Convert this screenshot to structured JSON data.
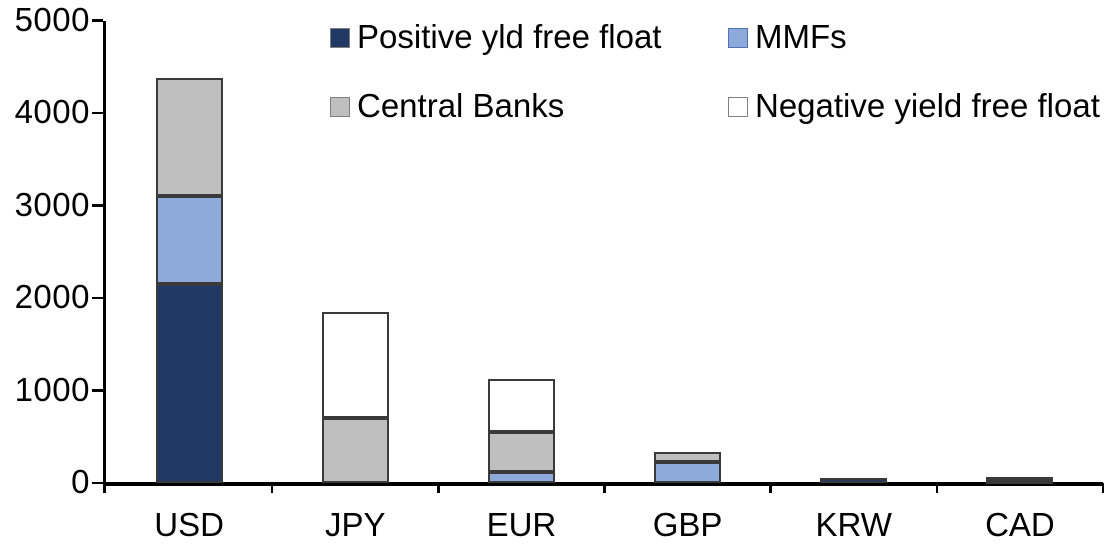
{
  "chart_data": {
    "type": "bar",
    "stacked": true,
    "title": "",
    "xlabel": "",
    "ylabel": "",
    "categories": [
      "USD",
      "JPY",
      "EUR",
      "GBP",
      "KRW",
      "CAD"
    ],
    "series": [
      {
        "name": "Positive yld free float",
        "color": "#1F3864",
        "values": [
          2150,
          0,
          0,
          0,
          50,
          30
        ]
      },
      {
        "name": "MMFs",
        "color": "#8EAADB",
        "values": [
          950,
          0,
          120,
          230,
          0,
          0
        ]
      },
      {
        "name": "Central Banks",
        "color": "#BFBFBF",
        "values": [
          1275,
          700,
          430,
          110,
          0,
          35
        ]
      },
      {
        "name": "Negative yield free float",
        "color": "#FFFFFF",
        "values": [
          0,
          1150,
          570,
          0,
          0,
          0
        ]
      }
    ],
    "ylim": [
      0,
      5000
    ],
    "yticks": [
      0,
      1000,
      2000,
      3000,
      4000,
      5000
    ],
    "grid": false,
    "legend_position": "top",
    "axis_color": "#000000",
    "bar_border_color": "#3A3A3A"
  }
}
